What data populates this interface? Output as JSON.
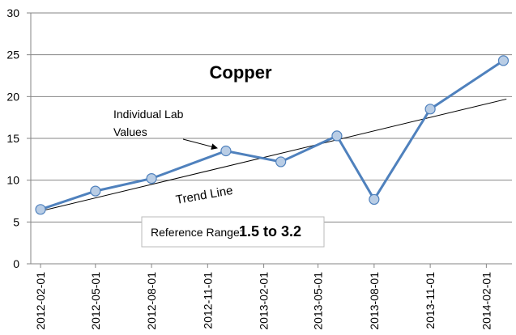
{
  "chart_data": {
    "type": "line",
    "title": "Copper",
    "x": [
      "2012-02-01",
      "2012-05-01",
      "2012-08-01",
      "2012-12-01",
      "2013-03-01",
      "2013-06-01",
      "2013-08-01",
      "2013-11-01",
      "2014-03-01"
    ],
    "values": [
      6.5,
      8.7,
      10.2,
      13.5,
      12.2,
      15.3,
      7.7,
      18.5,
      24.3
    ],
    "color": "#4f81bd",
    "marker_color": "#b9cde5",
    "trend_line": {
      "label": "Trend Line",
      "x": [
        "2012-02-01",
        "2014-03-06"
      ],
      "values": [
        6.3,
        19.7
      ],
      "color": "#000000"
    },
    "annotation": "Individual Lab Values",
    "reference_range": {
      "label": "Reference Range:",
      "value": "1.5 to 3.2",
      "color": "#e00000"
    },
    "xlim": [
      "2012-01-16",
      "2014-03-15"
    ],
    "xticks": [
      "2012-02-01",
      "2012-05-01",
      "2012-08-01",
      "2012-11-01",
      "2013-02-01",
      "2013-05-01",
      "2013-08-01",
      "2013-11-01",
      "2014-02-01"
    ],
    "ylim": [
      0,
      30
    ],
    "yticks": [
      0,
      5,
      10,
      15,
      20,
      25,
      30
    ],
    "grid": true
  }
}
